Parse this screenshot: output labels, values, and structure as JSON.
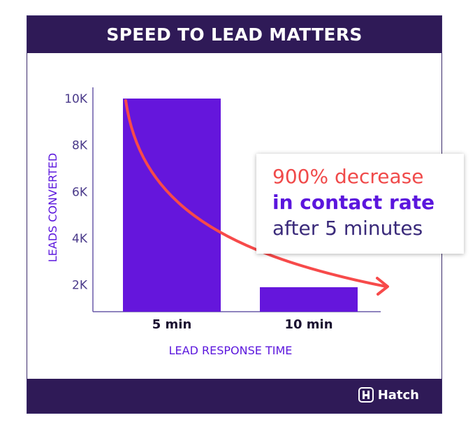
{
  "title": "SPEED TO LEAD MATTERS",
  "callout": {
    "line1": "900% decrease",
    "line2": "in contact rate",
    "line3": "after 5 minutes"
  },
  "brand": "Hatch",
  "colors": {
    "bar": "#6516dc",
    "arrow": "#f74a4a",
    "header": "#2f1a57",
    "axis_label": "#5b16dd",
    "tick": "#4a3a8a"
  },
  "chart_data": {
    "type": "bar",
    "categories": [
      "5 min",
      "10 min"
    ],
    "values": [
      10000,
      1900
    ],
    "xlabel": "LEAD RESPONSE TIME",
    "ylabel": "LEADS CONVERTED",
    "yticks": [
      2000,
      4000,
      6000,
      8000,
      10000
    ],
    "ytick_labels": [
      "2K",
      "4K",
      "6K",
      "8K",
      "10K"
    ],
    "ylim": [
      850,
      10000
    ],
    "grid": false,
    "annotation": "decay arrow from top of 5 min bar to 10 min bar"
  }
}
